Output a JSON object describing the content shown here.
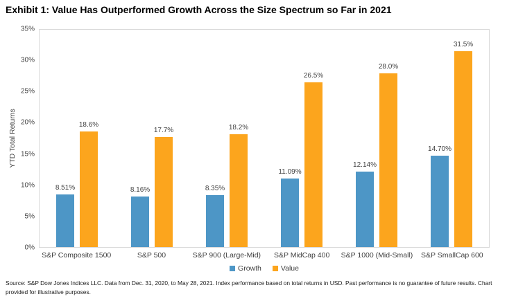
{
  "page": {
    "title": "Exhibit 1: Value Has Outperformed Growth Across the Size Spectrum so Far in 2021",
    "source_note": "Source: S&P Dow Jones Indices LLC. Data from Dec. 31, 2020, to May 28, 2021. Index performance based on total returns in USD. Past performance is no guarantee of future results. Chart provided for illustrative purposes."
  },
  "chart_data": {
    "type": "bar",
    "title": "Exhibit 1: Value Has Outperformed Growth Across the Size Spectrum so Far in 2021",
    "ylabel": "YTD Total Returns",
    "xlabel": "",
    "ylim": [
      0,
      35
    ],
    "yticks": [
      "0%",
      "5%",
      "10%",
      "15%",
      "20%",
      "25%",
      "30%",
      "35%"
    ],
    "grid": false,
    "legend_position": "bottom-center",
    "categories": [
      "S&P Composite 1500",
      "S&P 500",
      "S&P 900 (Large-Mid)",
      "S&P MidCap 400",
      "S&P 1000 (Mid-Small)",
      "S&P SmallCap 600"
    ],
    "series": [
      {
        "name": "Growth",
        "color": "#4D96C6",
        "values": [
          8.51,
          8.16,
          8.35,
          11.09,
          12.14,
          14.7
        ],
        "labels": [
          "8.51%",
          "8.16%",
          "8.35%",
          "11.09%",
          "12.14%",
          "14.70%"
        ]
      },
      {
        "name": "Value",
        "color": "#FCA51D",
        "values": [
          18.6,
          17.7,
          18.2,
          26.5,
          28.0,
          31.5
        ],
        "labels": [
          "18.6%",
          "17.7%",
          "18.2%",
          "26.5%",
          "28.0%",
          "31.5%"
        ]
      }
    ],
    "colors": {
      "growth": "#4D96C6",
      "value": "#FCA51D",
      "plot_border": "#D9D9D9",
      "axis_text": "#404040",
      "title_text": "#000000"
    }
  }
}
